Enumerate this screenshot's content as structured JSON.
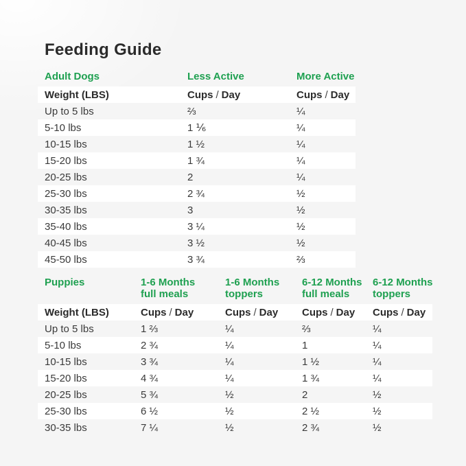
{
  "title": "Feeding Guide",
  "colors": {
    "brand_green": "#1ea050",
    "heading_text": "#2b2b2b",
    "body_text": "#3a3a3a",
    "page_bg": "#f5f5f5",
    "row_stripe": "#ffffff"
  },
  "adult_table": {
    "section_label": "Adult Dogs",
    "col_less_active": "Less Active",
    "col_more_active": "More Active",
    "weight_header": "Weight (LBS)",
    "cups": "Cups",
    "slash": "/",
    "day": "Day",
    "rows": [
      {
        "weight": "Up to 5 lbs",
        "less_active": "⅔",
        "more_active": "¼"
      },
      {
        "weight": "5-10 lbs",
        "less_active": "1 ⅙",
        "more_active": "¼"
      },
      {
        "weight": "10-15 lbs",
        "less_active": "1 ½",
        "more_active": "¼"
      },
      {
        "weight": "15-20 lbs",
        "less_active": "1 ¾",
        "more_active": "¼"
      },
      {
        "weight": "20-25 lbs",
        "less_active": "2",
        "more_active": "¼"
      },
      {
        "weight": "25-30 lbs",
        "less_active": "2 ¾",
        "more_active": "½"
      },
      {
        "weight": "30-35 lbs",
        "less_active": "3",
        "more_active": "½"
      },
      {
        "weight": "35-40 lbs",
        "less_active": "3 ¼",
        "more_active": "½"
      },
      {
        "weight": "40-45 lbs",
        "less_active": "3 ½",
        "more_active": "½"
      },
      {
        "weight": "45-50 lbs",
        "less_active": "3 ¾",
        "more_active": "⅔"
      }
    ]
  },
  "puppies_table": {
    "section_label": "Puppies",
    "columns": [
      {
        "line1": "1-6 Months",
        "line2": "full meals"
      },
      {
        "line1": "1-6 Months",
        "line2": "toppers"
      },
      {
        "line1": "6-12 Months",
        "line2": "full meals"
      },
      {
        "line1": "6-12 Months",
        "line2": "toppers"
      }
    ],
    "weight_header": "Weight (LBS)",
    "cups": "Cups",
    "slash": "/",
    "day": "Day",
    "rows": [
      {
        "weight": "Up to 5 lbs",
        "full_1_6": "1 ⅔",
        "toppers_1_6": "¼",
        "full_6_12": "⅔",
        "toppers_6_12": "¼"
      },
      {
        "weight": "5-10 lbs",
        "full_1_6": "2 ¾",
        "toppers_1_6": "¼",
        "full_6_12": "1",
        "toppers_6_12": "¼"
      },
      {
        "weight": "10-15 lbs",
        "full_1_6": "3 ¾",
        "toppers_1_6": "¼",
        "full_6_12": "1 ½",
        "toppers_6_12": "¼"
      },
      {
        "weight": "15-20 lbs",
        "full_1_6": "4 ¾",
        "toppers_1_6": "¼",
        "full_6_12": "1 ¾",
        "toppers_6_12": "¼"
      },
      {
        "weight": "20-25 lbs",
        "full_1_6": "5 ¾",
        "toppers_1_6": "½",
        "full_6_12": "2",
        "toppers_6_12": "½"
      },
      {
        "weight": "25-30 lbs",
        "full_1_6": "6 ½",
        "toppers_1_6": "½",
        "full_6_12": "2 ½",
        "toppers_6_12": "½"
      },
      {
        "weight": "30-35 lbs",
        "full_1_6": "7 ¼",
        "toppers_1_6": "½",
        "full_6_12": "2 ¾",
        "toppers_6_12": "½"
      }
    ]
  },
  "chart_data": [
    {
      "type": "table",
      "title": "Feeding Guide — Adult Dogs",
      "columns": [
        "Weight (LBS)",
        "Less Active (Cups / Day)",
        "More Active (Cups / Day)"
      ],
      "rows": [
        [
          "Up to 5 lbs",
          "⅔",
          "¼"
        ],
        [
          "5-10 lbs",
          "1 ⅙",
          "¼"
        ],
        [
          "10-15 lbs",
          "1 ½",
          "¼"
        ],
        [
          "15-20 lbs",
          "1 ¾",
          "¼"
        ],
        [
          "20-25 lbs",
          "2",
          "¼"
        ],
        [
          "25-30 lbs",
          "2 ¾",
          "½"
        ],
        [
          "30-35 lbs",
          "3",
          "½"
        ],
        [
          "35-40 lbs",
          "3 ¼",
          "½"
        ],
        [
          "40-45 lbs",
          "3 ½",
          "½"
        ],
        [
          "45-50 lbs",
          "3 ¾",
          "⅔"
        ]
      ]
    },
    {
      "type": "table",
      "title": "Feeding Guide — Puppies",
      "columns": [
        "Weight (LBS)",
        "1-6 Months full meals (Cups / Day)",
        "1-6 Months toppers (Cups / Day)",
        "6-12 Months full meals (Cups / Day)",
        "6-12 Months toppers (Cups / Day)"
      ],
      "rows": [
        [
          "Up to 5 lbs",
          "1 ⅔",
          "¼",
          "⅔",
          "¼"
        ],
        [
          "5-10 lbs",
          "2 ¾",
          "¼",
          "1",
          "¼"
        ],
        [
          "10-15 lbs",
          "3 ¾",
          "¼",
          "1 ½",
          "¼"
        ],
        [
          "15-20 lbs",
          "4 ¾",
          "¼",
          "1 ¾",
          "¼"
        ],
        [
          "20-25 lbs",
          "5 ¾",
          "½",
          "2",
          "½"
        ],
        [
          "25-30 lbs",
          "6 ½",
          "½",
          "2 ½",
          "½"
        ],
        [
          "30-35 lbs",
          "7 ¼",
          "½",
          "2 ¾",
          "½"
        ]
      ]
    }
  ]
}
